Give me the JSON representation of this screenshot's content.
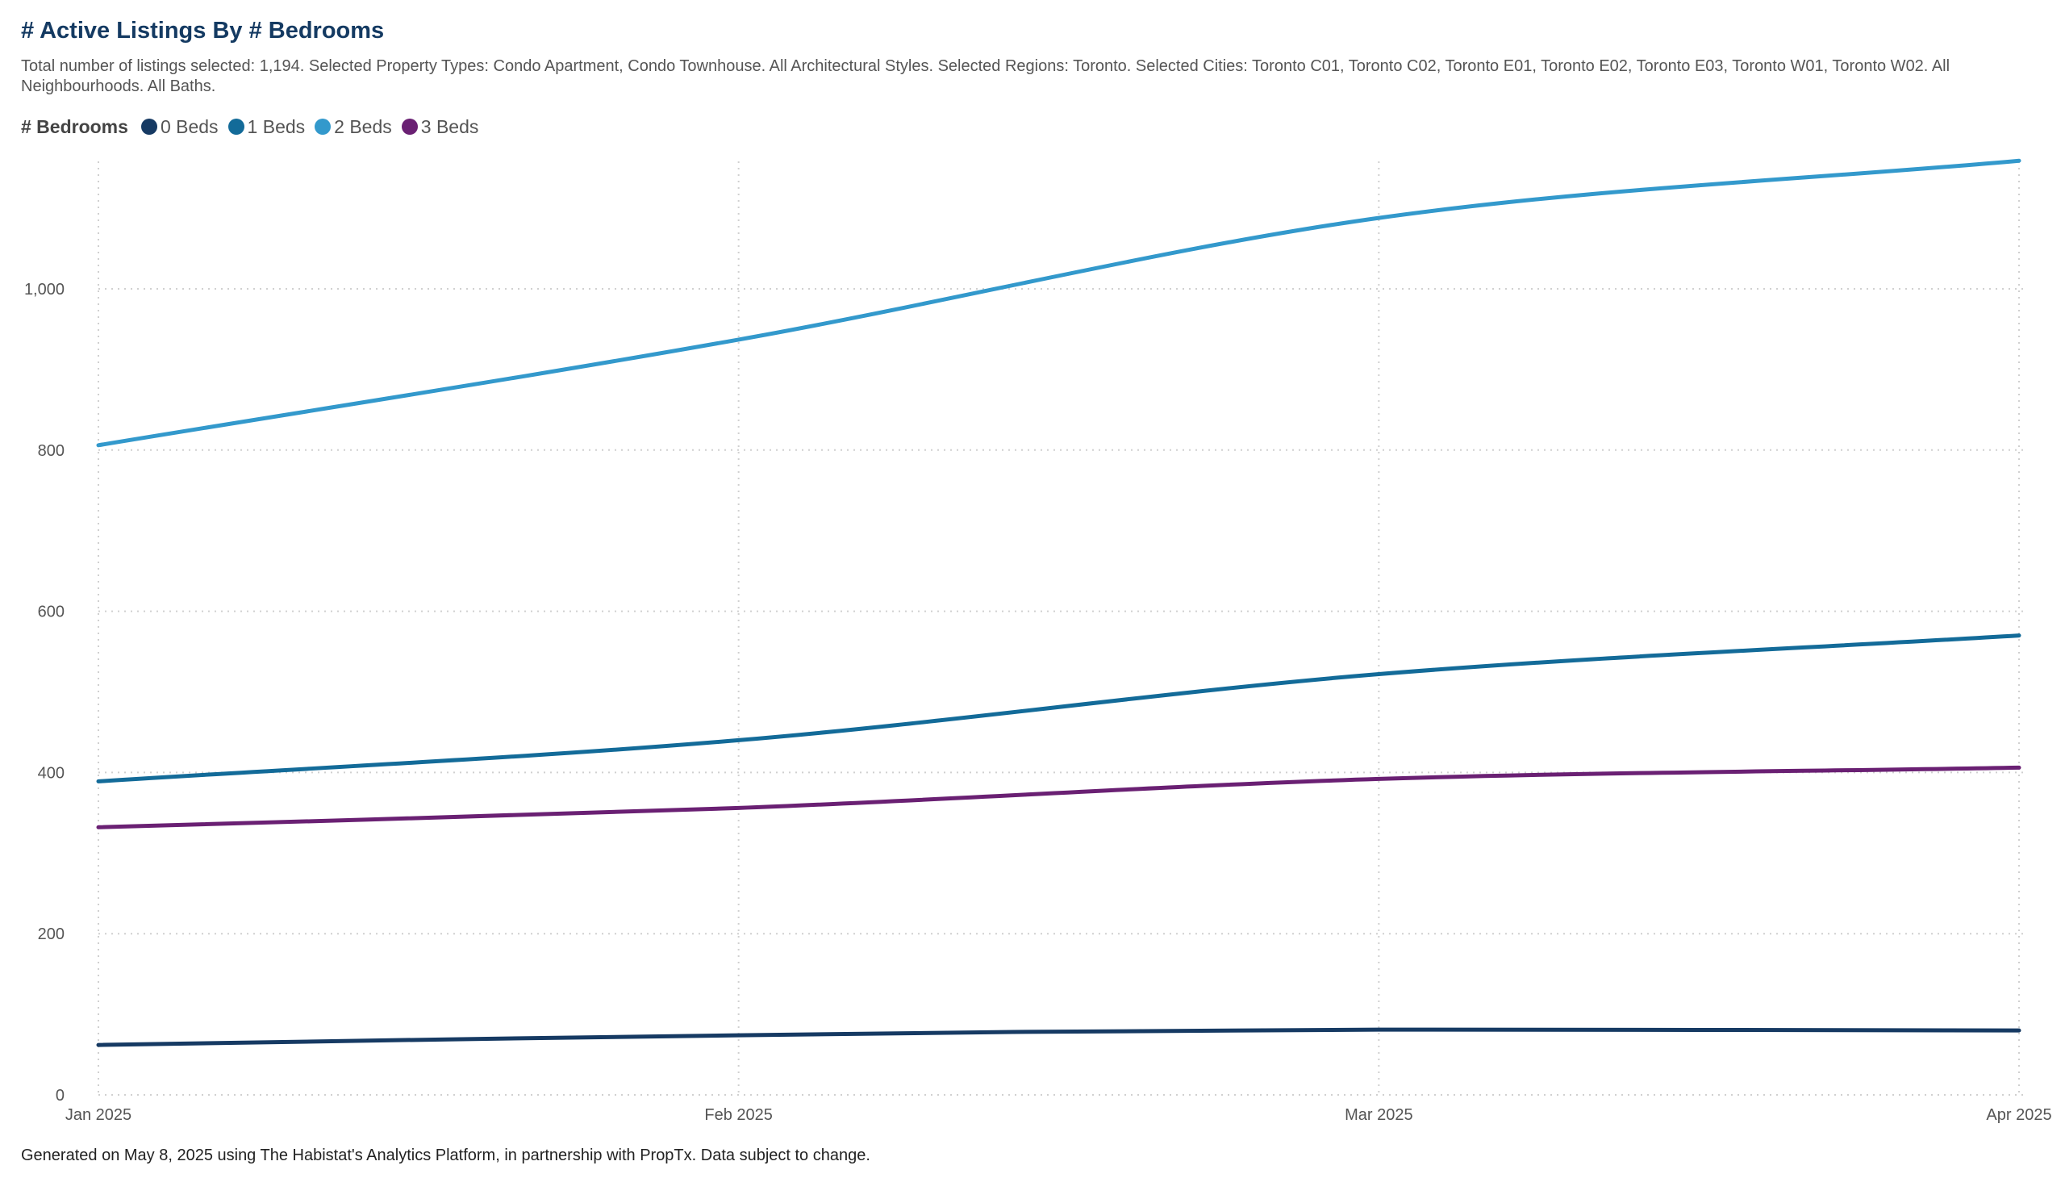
{
  "title": "# Active Listings By # Bedrooms",
  "subtitle": "Total number of listings selected: 1,194. Selected Property Types: Condo Apartment, Condo Townhouse. All Architectural Styles. Selected Regions: Toronto. Selected Cities: Toronto C01, Toronto C02, Toronto E01, Toronto E02, Toronto E03, Toronto W01, Toronto W02. All Neighbourhoods. All Baths.",
  "footer": "Generated on May 8, 2025 using The Habistat's Analytics Platform, in partnership with PropTx. Data subject to change.",
  "chart_data": {
    "type": "line",
    "legend_title": "# Bedrooms",
    "legend_position": "top-left",
    "categories": [
      "Jan 2025",
      "Feb 2025",
      "Mar 2025",
      "Apr 2025"
    ],
    "y_ticks": [
      "0",
      "200",
      "400",
      "600",
      "800",
      "1,000"
    ],
    "y_tick_values": [
      0,
      200,
      400,
      600,
      800,
      1000
    ],
    "ylim": [
      0,
      1160
    ],
    "grid": true,
    "series": [
      {
        "name": "0 Beds",
        "color": "#163a63",
        "values": [
          62,
          74,
          81,
          80
        ]
      },
      {
        "name": "1 Beds",
        "color": "#136b99",
        "values": [
          389,
          440,
          522,
          570
        ]
      },
      {
        "name": "2 Beds",
        "color": "#3399cc",
        "values": [
          806,
          937,
          1088,
          1159
        ]
      },
      {
        "name": "3 Beds",
        "color": "#6a2073",
        "values": [
          332,
          356,
          392,
          406
        ]
      }
    ]
  }
}
